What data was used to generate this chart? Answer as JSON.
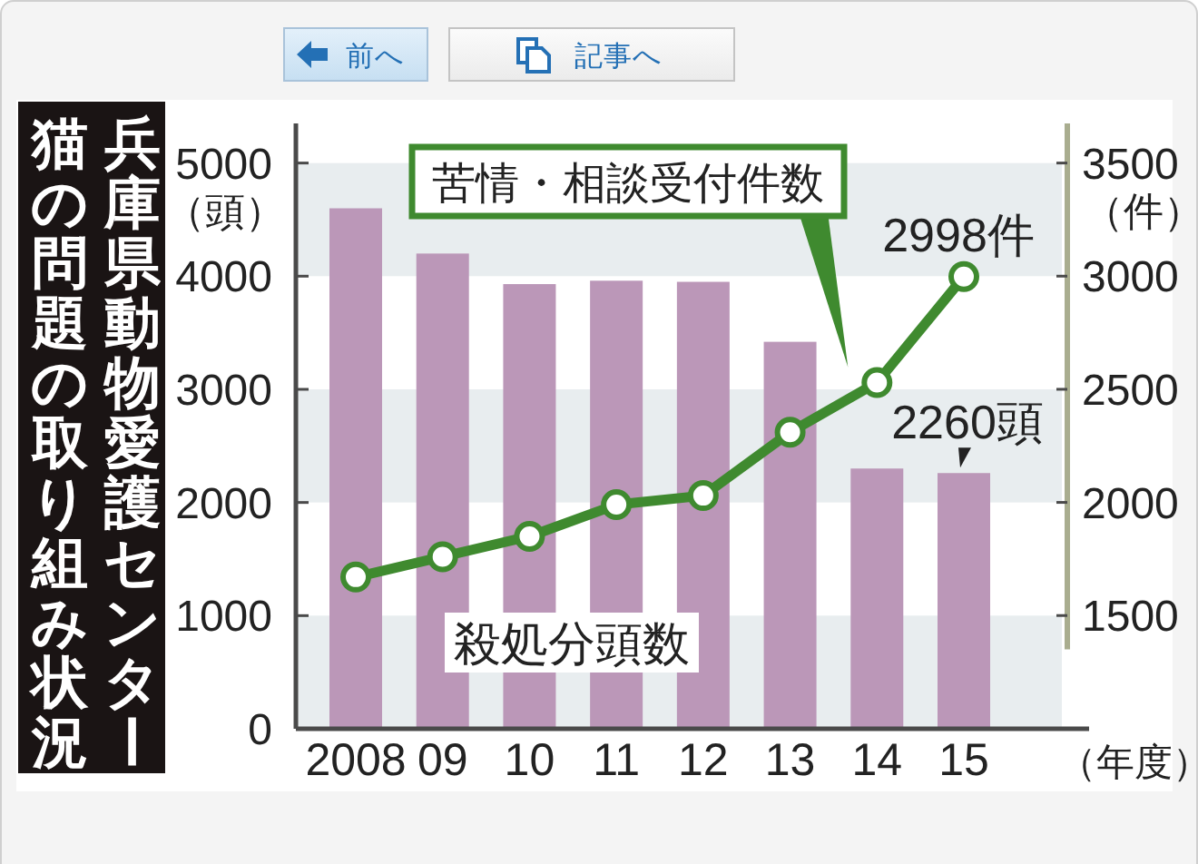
{
  "chart_data": {
    "type": "bar",
    "title": "兵庫県動物愛護センター",
    "subtitle": "猫の問題の取り組み状況",
    "xlabel": "（年度）",
    "ylabel": "（頭）",
    "y2label": "（件）",
    "annotations": [
      "前へ",
      "記事へ"
    ],
    "categories": [
      "2008",
      "09",
      "10",
      "11",
      "12",
      "13",
      "14",
      "15"
    ],
    "series": [
      {
        "name": "殺処分頭数",
        "color": "#bb97b8",
        "values": [
          4600,
          4200,
          3930,
          3960,
          3950,
          3420,
          2300,
          2260
        ],
        "value_labels": [
          null,
          null,
          null,
          null,
          null,
          null,
          null,
          "2260頭"
        ]
      },
      {
        "name": "苦情・相談受付件数",
        "type": "line",
        "axis": "y2",
        "color": "#3f8a2f",
        "values": [
          1670,
          1760,
          1850,
          1990,
          2030,
          2310,
          2530,
          2998
        ],
        "value_labels": [
          null,
          null,
          null,
          null,
          null,
          null,
          null,
          "2998件"
        ]
      }
    ],
    "ylim": [
      0,
      5350
    ],
    "yticks": [
      0,
      1000,
      2000,
      3000,
      4000,
      5000
    ],
    "y2lim": [
      1350,
      3675
    ],
    "y2ticks": [
      1500,
      2000,
      2500,
      3000,
      3500
    ],
    "bands": [
      {
        "axis": "y",
        "from": 0,
        "to": 1000,
        "color": "#e8edef"
      },
      {
        "axis": "y",
        "from": 2000,
        "to": 3000,
        "color": "#e8edef"
      },
      {
        "axis": "y",
        "from": 4000,
        "to": 5000,
        "color": "#e8edef"
      }
    ],
    "marker": "circle"
  }
}
